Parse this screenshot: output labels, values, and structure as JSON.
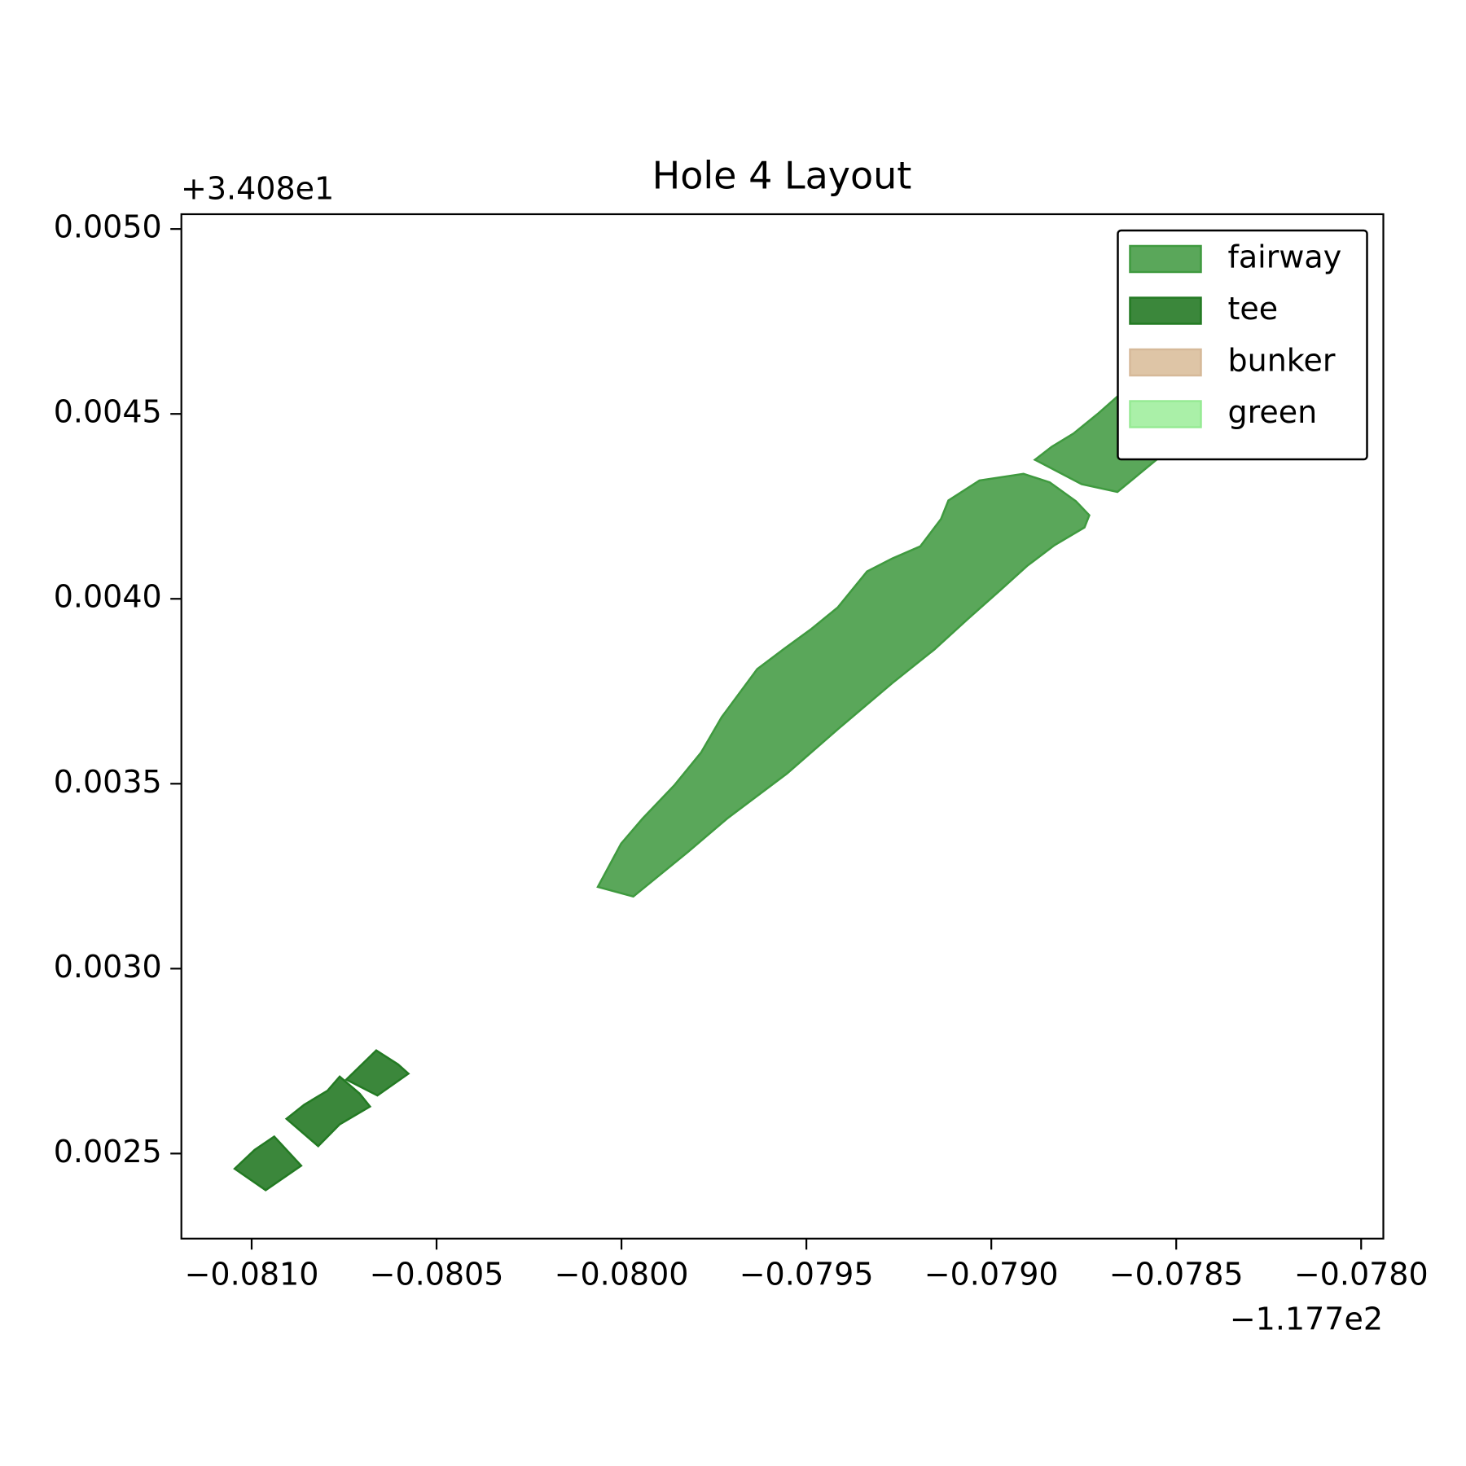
{
  "chart_data": {
    "type": "polygon",
    "title": "Hole 4 Layout",
    "x_offset_label": "−1.177e2",
    "y_offset_label": "+3.408e1",
    "xlim": [
      -0.08119,
      -0.07794
    ],
    "ylim": [
      0.00227,
      0.00504
    ],
    "xticks": [
      {
        "value": -0.081,
        "label": "−0.0810"
      },
      {
        "value": -0.0805,
        "label": "−0.0805"
      },
      {
        "value": -0.08,
        "label": "−0.0800"
      },
      {
        "value": -0.0795,
        "label": "−0.0795"
      },
      {
        "value": -0.079,
        "label": "−0.0790"
      },
      {
        "value": -0.0785,
        "label": "−0.0785"
      },
      {
        "value": -0.078,
        "label": "−0.0780"
      }
    ],
    "yticks": [
      {
        "value": 0.0025,
        "label": "0.0025"
      },
      {
        "value": 0.003,
        "label": "0.0030"
      },
      {
        "value": 0.0035,
        "label": "0.0035"
      },
      {
        "value": 0.004,
        "label": "0.0040"
      },
      {
        "value": 0.0045,
        "label": "0.0045"
      },
      {
        "value": 0.005,
        "label": "0.0050"
      }
    ],
    "legend": "upper right",
    "series": [
      {
        "name": "fairway",
        "color": "#5aa75a",
        "edgecolor": "#3f9a3f",
        "polygons": [
          {
            "x": [
              -0.080064,
              -0.080001,
              -0.079943,
              -0.079856,
              -0.079785,
              -0.079729,
              -0.079633,
              -0.07956,
              -0.079486,
              -0.079415,
              -0.079336,
              -0.079268,
              -0.079192,
              -0.079136,
              -0.079116,
              -0.079032,
              -0.078913,
              -0.078842,
              -0.078771,
              -0.078735,
              -0.078748,
              -0.078829,
              -0.078903,
              -0.078974,
              -0.079065,
              -0.079154,
              -0.079268,
              -0.079412,
              -0.079552,
              -0.079714,
              -0.079821,
              -0.079968
            ],
            "y": [
              0.003221,
              0.003338,
              0.003406,
              0.003497,
              0.003584,
              0.00368,
              0.00381,
              0.003865,
              0.003919,
              0.003977,
              0.004074,
              0.004109,
              0.004142,
              0.004216,
              0.004266,
              0.00432,
              0.004338,
              0.004315,
              0.004264,
              0.004226,
              0.004193,
              0.004145,
              0.004089,
              0.004025,
              0.003944,
              0.003863,
              0.003772,
              0.00365,
              0.003528,
              0.003406,
              0.003315,
              0.003195
            ]
          },
          {
            "x": [
              -0.078882,
              -0.078837,
              -0.078778,
              -0.07871,
              -0.078647,
              -0.078558,
              -0.078482,
              -0.078477,
              -0.078659,
              -0.078756
            ],
            "y": [
              0.004376,
              0.004411,
              0.004447,
              0.004502,
              0.004558,
              0.004629,
              0.004604,
              0.004439,
              0.004289,
              0.00431
            ]
          }
        ]
      },
      {
        "name": "tee",
        "color": "#3b873b",
        "edgecolor": "#237a23",
        "polygons": [
          {
            "x": [
              -0.081046,
              -0.080992,
              -0.080939,
              -0.080866,
              -0.080962
            ],
            "y": [
              0.002459,
              0.00251,
              0.002546,
              0.002467,
              0.002401
            ]
          },
          {
            "x": [
              -0.080906,
              -0.080858,
              -0.080795,
              -0.080762,
              -0.080708,
              -0.08068,
              -0.080762,
              -0.08082
            ],
            "y": [
              0.002594,
              0.002632,
              0.00267,
              0.002708,
              0.002662,
              0.002627,
              0.002579,
              0.00252
            ]
          },
          {
            "x": [
              -0.080744,
              -0.080663,
              -0.080604,
              -0.080576,
              -0.08066
            ],
            "y": [
              0.0027,
              0.002779,
              0.002741,
              0.002716,
              0.002657
            ]
          }
        ]
      },
      {
        "name": "bunker",
        "color": "#dec5a6",
        "edgecolor": "#d6b999"
      },
      {
        "name": "green",
        "color": "#aaf0a8",
        "edgecolor": "#96ea94"
      }
    ]
  }
}
